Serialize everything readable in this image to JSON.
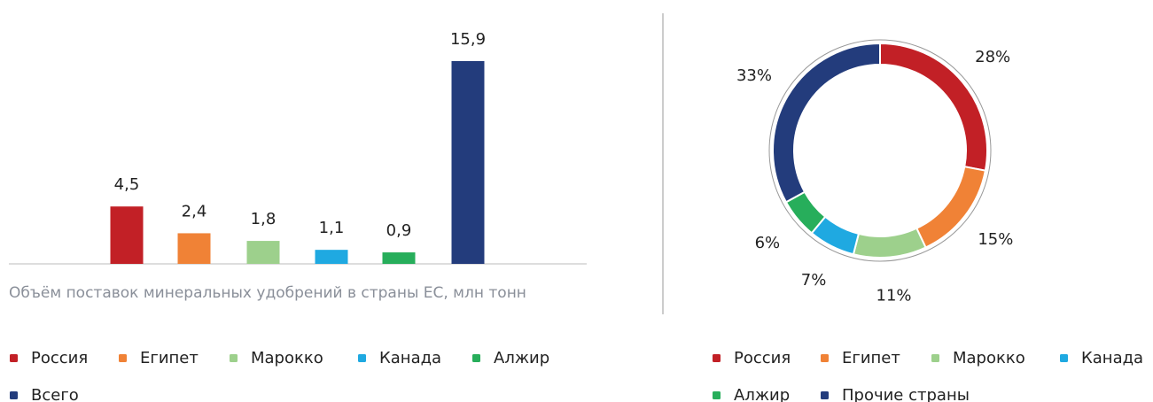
{
  "chart_data": [
    {
      "type": "bar",
      "title": "Объём поставок минеральных удобрений в страны ЕС, млн тонн",
      "categories": [
        "Россия",
        "Египет",
        "Марокко",
        "Канада",
        "Алжир",
        "Всего"
      ],
      "values": [
        4.5,
        2.4,
        1.8,
        1.1,
        0.9,
        15.9
      ],
      "value_labels": [
        "4,5",
        "2,4",
        "1,8",
        "1,1",
        "0,9",
        "15,9"
      ],
      "colors": [
        "#c22026",
        "#f08236",
        "#9dd08c",
        "#1fa9e1",
        "#27ae5b",
        "#233c7c"
      ]
    },
    {
      "type": "donut",
      "categories": [
        "Россия",
        "Египет",
        "Марокко",
        "Канада",
        "Алжир",
        "Прочие страны"
      ],
      "values": [
        28,
        15,
        11,
        7,
        6,
        33
      ],
      "value_labels": [
        "28%",
        "15%",
        "11%",
        "7%",
        "6%",
        "33%"
      ],
      "colors": [
        "#c22026",
        "#f08236",
        "#9dd08c",
        "#1fa9e1",
        "#27ae5b",
        "#233c7c"
      ]
    }
  ]
}
